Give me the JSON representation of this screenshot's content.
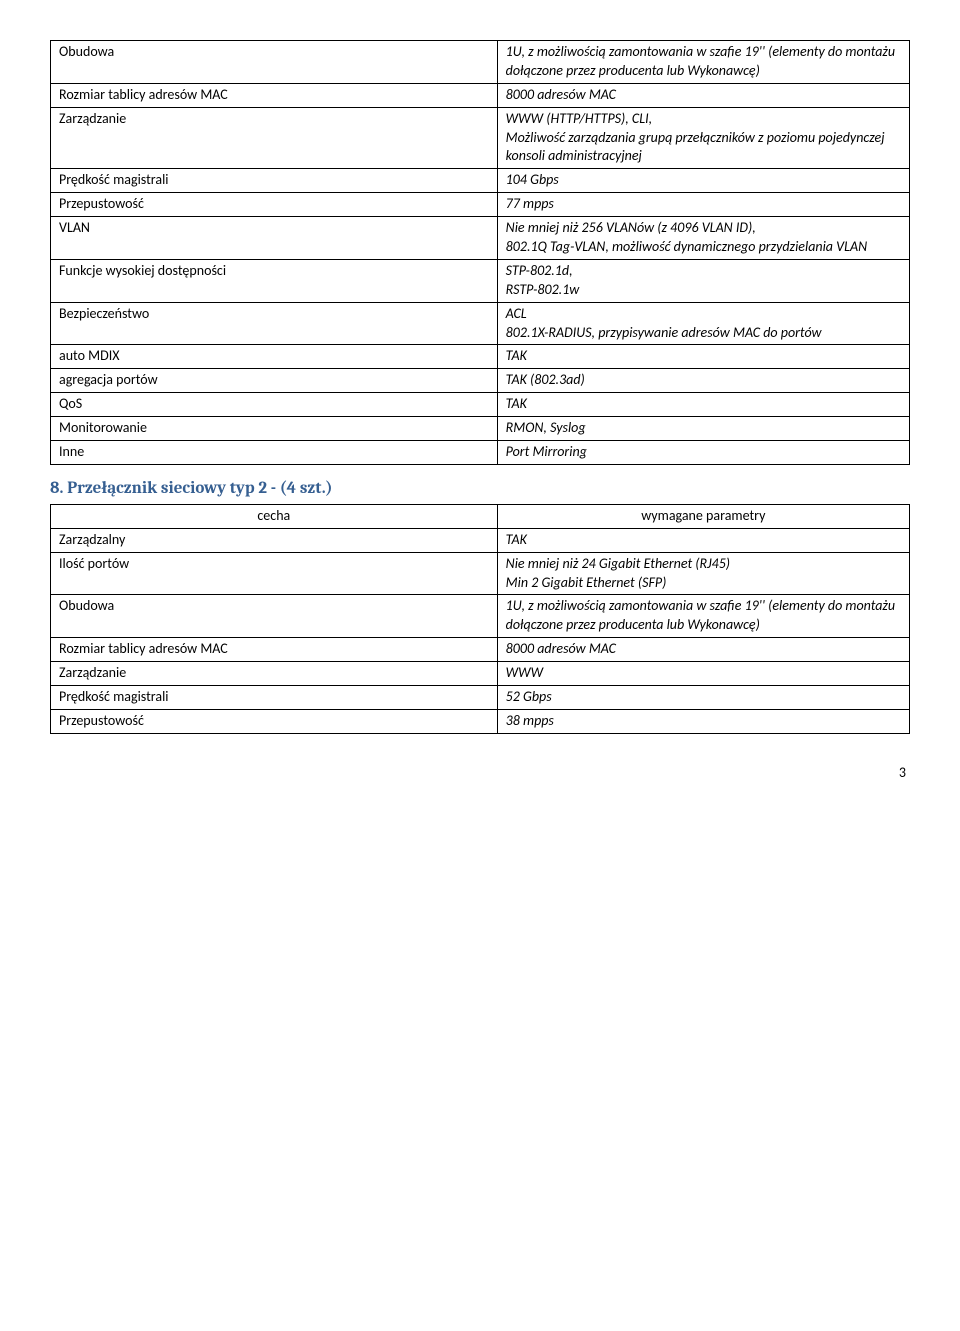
{
  "table1": {
    "rows": [
      {
        "left": "Obudowa",
        "right": "1U, z możliwością zamontowania w szafie 19'' (elementy do montażu dołączone przez producenta lub Wykonawcę)"
      },
      {
        "left": "Rozmiar tablicy adresów MAC",
        "right": "8000 adresów MAC"
      },
      {
        "left": "Zarządzanie",
        "right": "WWW (HTTP/HTTPS), CLI,\nMożliwość zarządzania grupą przełączników z poziomu pojedynczej konsoli administracyjnej"
      },
      {
        "left": "Prędkość magistrali",
        "right": "104 Gbps"
      },
      {
        "left": "Przepustowość",
        "right": "77 mpps"
      },
      {
        "left": "VLAN",
        "right": "Nie mniej niż 256 VLANów (z 4096 VLAN ID),\n802.1Q Tag-VLAN, możliwość dynamicznego przydzielania VLAN"
      },
      {
        "left": "Funkcje wysokiej dostępności",
        "right": "STP-802.1d,\nRSTP-802.1w"
      },
      {
        "left": "Bezpieczeństwo",
        "right": "ACL\n802.1X-RADIUS, przypisywanie adresów MAC do portów"
      },
      {
        "left": "auto MDIX",
        "right": "TAK"
      },
      {
        "left": "agregacja portów",
        "right": "TAK (802.3ad)"
      },
      {
        "left": "QoS",
        "right": "TAK"
      },
      {
        "left": "Monitorowanie",
        "right": "RMON, Syslog"
      },
      {
        "left": "Inne",
        "right": "Port Mirroring"
      }
    ]
  },
  "section2": {
    "heading": "8. Przełącznik sieciowy typ 2 - (4 szt.)",
    "header": {
      "left": "cecha",
      "right": "wymagane parametry"
    },
    "rows": [
      {
        "left": "Zarządzalny",
        "right": "TAK"
      },
      {
        "left": "Ilość portów",
        "right": "Nie mniej niż 24 Gigabit Ethernet (RJ45)\nMin 2 Gigabit Ethernet (SFP)"
      },
      {
        "left": "Obudowa",
        "right": "1U, z możliwością zamontowania w szafie 19'' (elementy do montażu dołączone przez producenta lub Wykonawcę)"
      },
      {
        "left": "Rozmiar tablicy adresów MAC",
        "right": "8000 adresów MAC"
      },
      {
        "left": "Zarządzanie",
        "right": "WWW"
      },
      {
        "left": "Prędkość magistrali",
        "right": "52 Gbps"
      },
      {
        "left": "Przepustowość",
        "right": "38 mpps"
      }
    ]
  },
  "pageNumber": "3"
}
